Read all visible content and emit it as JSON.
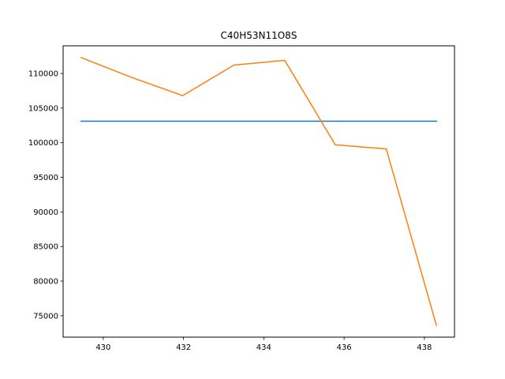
{
  "chart_data": {
    "type": "line",
    "title": "C40H53N11O8S",
    "xlabel": "",
    "ylabel": "",
    "xlim": [
      429.0,
      438.75
    ],
    "ylim": [
      71900,
      114000
    ],
    "grid": false,
    "x_ticks": [
      430,
      432,
      434,
      436,
      438
    ],
    "y_ticks": [
      75000,
      80000,
      85000,
      90000,
      95000,
      100000,
      105000,
      110000
    ],
    "series": [
      {
        "color": "#1f77b4",
        "x": [
          429.45,
          438.3
        ],
        "y": [
          103100,
          103100
        ]
      },
      {
        "color": "#ff7f0e",
        "x": [
          429.45,
          430.72,
          431.98,
          433.25,
          434.52,
          435.78,
          437.05,
          438.3
        ],
        "y": [
          112300,
          109400,
          106800,
          111200,
          111900,
          99700,
          99100,
          73600
        ]
      }
    ]
  }
}
